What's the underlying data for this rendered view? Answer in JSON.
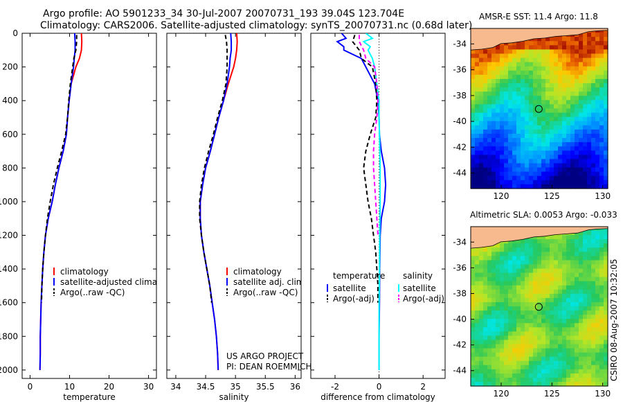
{
  "titles": {
    "line1": "Argo profile: AO 5901233_34 30-Jul-2007 20070731_193 39.04S 123.704E",
    "line2": "Climatology: CARS2006. Satellite-adjusted climatology: synTS_20070731.nc (0.68d later)",
    "map_top": "AMSR-E SST: 11.4 Argo: 11.8",
    "map_bottom": "Altimetric SLA: 0.0053 Argo: -0.033",
    "side_stamp": "CSIRO 08-Aug-2007 10:32:05"
  },
  "colors": {
    "climatology": "#ff0000",
    "satellite": "#0000ff",
    "argo": "#000000",
    "salinity_satellite": "#00ffff",
    "salinity_argo": "#ff00ff",
    "land": "#f7b98e"
  },
  "chart_data": [
    {
      "type": "line",
      "name": "temperature-panel",
      "xlabel": "temperature",
      "ylabel": "",
      "xlim": [
        -2,
        32
      ],
      "ylim": [
        2050,
        0
      ],
      "xticks": [
        "0",
        "10",
        "20",
        "30"
      ],
      "xtick_values": [
        0,
        10,
        20,
        30
      ],
      "yticks": [
        "0",
        "200",
        "400",
        "600",
        "800",
        "1000",
        "1200",
        "1400",
        "1600",
        "1800",
        "2000"
      ],
      "ytick_values": [
        0,
        200,
        400,
        600,
        800,
        1000,
        1200,
        1400,
        1600,
        1800,
        2000
      ],
      "legend": [
        "climatology",
        "satellite-adjusted climatology",
        "Argo(..raw -QC)"
      ],
      "series": [
        {
          "name": "climatology",
          "color": "#ff0000",
          "dash": "",
          "depth": [
            0,
            50,
            100,
            150,
            200,
            300,
            400,
            500,
            600,
            700,
            800,
            900,
            1000,
            1100,
            1200,
            1300,
            1400,
            1500,
            1600,
            1700,
            1800,
            1900,
            2000
          ],
          "values": [
            13,
            13.1,
            13.0,
            12.5,
            11.6,
            10.4,
            9.9,
            9.5,
            9.2,
            8.4,
            7.3,
            6.4,
            5.6,
            4.6,
            3.9,
            3.5,
            3.2,
            3.0,
            2.8,
            2.7,
            2.6,
            2.6,
            2.5
          ]
        },
        {
          "name": "satellite-adjusted climatology",
          "color": "#0000ff",
          "dash": "",
          "depth": [
            0,
            50,
            100,
            150,
            200,
            300,
            400,
            500,
            600,
            700,
            800,
            900,
            1000,
            1100,
            1200,
            1300,
            1400,
            1500,
            1600,
            1700,
            1800,
            1900,
            2000
          ],
          "values": [
            11.3,
            11.4,
            11.4,
            11.2,
            11.0,
            10.4,
            9.9,
            9.5,
            9.2,
            8.4,
            7.3,
            6.4,
            5.6,
            4.6,
            3.9,
            3.5,
            3.2,
            3.0,
            2.8,
            2.7,
            2.6,
            2.6,
            2.5
          ]
        },
        {
          "name": "Argo(..raw -QC)",
          "color": "#000000",
          "dash": "6,4",
          "depth": [
            10,
            50,
            100,
            150,
            200,
            300,
            400,
            500,
            600,
            700,
            800,
            900,
            1000,
            1100,
            1200,
            1300,
            1400,
            1500,
            1600
          ],
          "values": [
            11.8,
            11.8,
            11.6,
            11.1,
            10.8,
            10.2,
            9.8,
            9.5,
            9.0,
            8.0,
            6.9,
            5.9,
            5.1,
            4.4,
            3.9,
            3.5,
            3.2,
            3.0,
            2.9
          ]
        }
      ]
    },
    {
      "type": "line",
      "name": "salinity-panel",
      "xlabel": "salinity",
      "ylabel": "",
      "xlim": [
        33.85,
        36.1
      ],
      "ylim": [
        2050,
        0
      ],
      "xticks": [
        "34",
        "34.5",
        "35",
        "35.5",
        "36"
      ],
      "xtick_values": [
        34,
        34.5,
        35,
        35.5,
        36
      ],
      "legend": [
        "climatology",
        "satellite adj. clim.",
        "Argo(..raw -QC)"
      ],
      "annotation": [
        "US ARGO PROJECT",
        "PI: DEAN ROEMMICH"
      ],
      "series": [
        {
          "name": "climatology",
          "color": "#ff0000",
          "dash": "",
          "depth": [
            0,
            50,
            100,
            150,
            200,
            300,
            400,
            500,
            600,
            700,
            800,
            900,
            1000,
            1100,
            1200,
            1300,
            1400,
            1500,
            1600,
            1700,
            1800,
            1900,
            2000
          ],
          "values": [
            35.02,
            35.03,
            35.02,
            35.0,
            34.97,
            34.88,
            34.8,
            34.72,
            34.65,
            34.58,
            34.5,
            34.45,
            34.41,
            34.41,
            34.43,
            34.47,
            34.52,
            34.57,
            34.61,
            34.65,
            34.68,
            34.7,
            34.71
          ]
        },
        {
          "name": "satellite adj. clim.",
          "color": "#0000ff",
          "dash": "",
          "depth": [
            0,
            50,
            100,
            150,
            200,
            300,
            400,
            500,
            600,
            700,
            800,
            900,
            1000,
            1100,
            1200,
            1300,
            1400,
            1500,
            1600,
            1700,
            1800,
            1900,
            2000
          ],
          "values": [
            34.92,
            34.93,
            34.93,
            34.91,
            34.9,
            34.86,
            34.8,
            34.72,
            34.65,
            34.58,
            34.5,
            34.45,
            34.41,
            34.41,
            34.43,
            34.47,
            34.52,
            34.57,
            34.61,
            34.65,
            34.68,
            34.7,
            34.71
          ]
        },
        {
          "name": "Argo(..raw -QC)",
          "color": "#000000",
          "dash": "6,4",
          "depth": [
            10,
            50,
            100,
            150,
            200,
            300,
            400,
            500,
            600,
            700,
            800,
            900,
            1000,
            1100,
            1200,
            1300,
            1400,
            1500,
            1600
          ],
          "values": [
            34.83,
            34.85,
            34.86,
            34.86,
            34.86,
            34.84,
            34.78,
            34.7,
            34.63,
            34.55,
            34.48,
            34.43,
            34.4,
            34.4,
            34.43,
            34.47,
            34.52,
            34.57,
            34.6
          ]
        }
      ]
    },
    {
      "type": "line",
      "name": "difference-panel",
      "xlabel": "difference from climatology",
      "ylabel": "",
      "xlim": [
        -3.1,
        3.0
      ],
      "ylim": [
        2050,
        0
      ],
      "xticks": [
        "-2",
        "0",
        "2"
      ],
      "xtick_values": [
        -2,
        0,
        2
      ],
      "legend_headers": [
        "temperature",
        "salinity"
      ],
      "legend_left": [
        "satellite",
        "Argo(-adj)"
      ],
      "legend_right": [
        "satellite",
        "Argo(-adj)"
      ],
      "series": [
        {
          "name": "temperature satellite",
          "color": "#0000ff",
          "dash": "",
          "depth": [
            0,
            30,
            50,
            80,
            100,
            150,
            200,
            300,
            400,
            500,
            600,
            700,
            800,
            900,
            1000,
            1100,
            1200,
            1400,
            1600,
            1800,
            2000
          ],
          "values": [
            -1.7,
            -1.5,
            -1.9,
            -1.6,
            -1.6,
            -0.8,
            -0.6,
            -0.2,
            -0.05,
            0.0,
            0.02,
            0.1,
            0.25,
            0.3,
            0.25,
            0.1,
            0.05,
            0.03,
            0.02,
            0.0,
            0.0
          ]
        },
        {
          "name": "temperature Argo(-adj)",
          "color": "#000000",
          "dash": "6,4",
          "depth": [
            10,
            50,
            100,
            150,
            200,
            300,
            400,
            500,
            600,
            700,
            800,
            900,
            1000,
            1100,
            1200,
            1300,
            1400,
            1500,
            1600
          ],
          "values": [
            -1.1,
            -1.2,
            -0.9,
            -0.8,
            -0.3,
            -0.15,
            -0.1,
            -0.15,
            -0.4,
            -0.6,
            -0.7,
            -0.6,
            -0.5,
            -0.35,
            -0.25,
            -0.15,
            -0.1,
            -0.05,
            -0.05
          ]
        },
        {
          "name": "salinity satellite",
          "color": "#00ffff",
          "dash": "",
          "depth": [
            0,
            30,
            50,
            80,
            100,
            150,
            200,
            300,
            400,
            500,
            600,
            800,
            1000,
            1200,
            1400,
            1600,
            1800,
            2000
          ],
          "values": [
            -0.6,
            -0.3,
            -0.7,
            -0.4,
            -0.5,
            -0.3,
            -0.2,
            -0.1,
            0.0,
            0.0,
            0.02,
            0.05,
            0.05,
            0.03,
            0.02,
            0.0,
            0.0,
            0.0
          ]
        },
        {
          "name": "salinity Argo(-adj)",
          "color": "#ff00ff",
          "dash": "6,4",
          "depth": [
            10,
            50,
            100,
            150,
            200,
            300,
            400,
            500,
            600,
            700,
            800,
            900,
            1000,
            1100,
            1200
          ],
          "values": [
            -0.9,
            -0.9,
            -0.7,
            -0.6,
            -0.2,
            -0.1,
            -0.05,
            -0.1,
            -0.2,
            -0.25,
            -0.25,
            -0.2,
            -0.15,
            -0.1,
            -0.05
          ]
        }
      ]
    },
    {
      "type": "heatmap",
      "name": "sst-map",
      "title": "AMSR-E SST: 11.4 Argo: 11.8",
      "xlim": [
        117,
        130.5
      ],
      "ylim": [
        -45.2,
        -32.8
      ],
      "xticks": [
        "120",
        "125",
        "130"
      ],
      "xtick_values": [
        120,
        125,
        130
      ],
      "yticks": [
        "-34",
        "-36",
        "-38",
        "-40",
        "-42",
        "-44"
      ],
      "ytick_values": [
        -34,
        -36,
        -38,
        -40,
        -42,
        -44
      ],
      "marker": {
        "lon": 123.704,
        "lat": -39.04
      }
    },
    {
      "type": "heatmap",
      "name": "sla-map",
      "title": "Altimetric SLA: 0.0053 Argo: -0.033",
      "xlim": [
        117,
        130.5
      ],
      "ylim": [
        -45.2,
        -32.8
      ],
      "xticks": [
        "120",
        "125",
        "130"
      ],
      "xtick_values": [
        120,
        125,
        130
      ],
      "yticks": [
        "-34",
        "-36",
        "-38",
        "-40",
        "-42",
        "-44"
      ],
      "ytick_values": [
        -34,
        -36,
        -38,
        -40,
        -42,
        -44
      ],
      "marker": {
        "lon": 123.704,
        "lat": -39.04
      }
    }
  ]
}
